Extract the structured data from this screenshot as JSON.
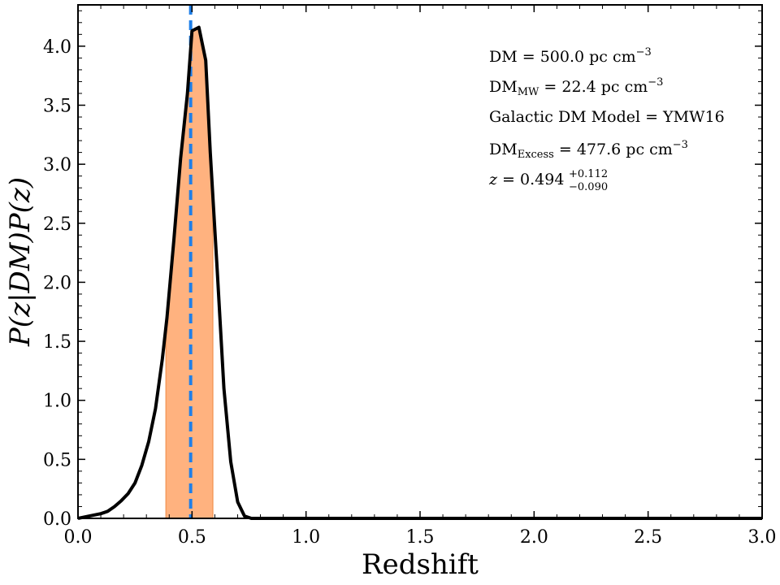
{
  "chart_data": {
    "type": "line",
    "xlabel": "Redshift",
    "ylabel": "P(z|DM)P(z)",
    "xlim": [
      0.0,
      3.0
    ],
    "ylim": [
      0.0,
      4.35
    ],
    "x_ticks": [
      0.0,
      0.5,
      1.0,
      1.5,
      2.0,
      2.5,
      3.0
    ],
    "x_tick_labels": [
      "0.0",
      "0.5",
      "1.0",
      "1.5",
      "2.0",
      "2.5",
      "3.0"
    ],
    "y_ticks": [
      0.0,
      0.5,
      1.0,
      1.5,
      2.0,
      2.5,
      3.0,
      3.5,
      4.0
    ],
    "y_tick_labels": [
      "0.0",
      "0.5",
      "1.0",
      "1.5",
      "2.0",
      "2.5",
      "3.0",
      "3.5",
      "4.0"
    ],
    "grid": false,
    "series": [
      {
        "color": "#000000",
        "x": [
          0.0,
          0.05,
          0.1,
          0.13,
          0.16,
          0.19,
          0.22,
          0.25,
          0.28,
          0.31,
          0.34,
          0.37,
          0.39,
          0.42,
          0.45,
          0.48,
          0.5,
          0.53,
          0.56,
          0.58,
          0.61,
          0.64,
          0.67,
          0.7,
          0.73,
          0.76,
          0.79,
          0.82,
          0.85,
          0.9,
          1.0,
          1.5,
          2.0,
          2.5,
          3.0
        ],
        "y": [
          0.0,
          0.02,
          0.04,
          0.06,
          0.1,
          0.15,
          0.21,
          0.3,
          0.45,
          0.65,
          0.93,
          1.35,
          1.7,
          2.35,
          3.05,
          3.6,
          4.13,
          4.16,
          3.88,
          3.1,
          2.12,
          1.1,
          0.48,
          0.14,
          0.02,
          0.0,
          0.0,
          0.0,
          0.0,
          0.0,
          0.0,
          0.0,
          0.0,
          0.0,
          0.0
        ]
      }
    ],
    "shaded_interval": {
      "x_min": 0.386,
      "x_max": 0.591,
      "color": "#ffb27f"
    },
    "vertical_line": {
      "x": 0.494,
      "color": "#1f7fe8",
      "style": "dashed"
    },
    "annotations": {
      "dm": {
        "lhs": "DM",
        "value": " = 500.0 pc cm",
        "sup": "−3"
      },
      "dm_mw": {
        "lhs": "DM",
        "sub": "MW",
        "value": " = 22.4 pc cm",
        "sup": "−3"
      },
      "model": {
        "text": "Galactic DM Model = YMW16"
      },
      "dm_excess": {
        "lhs": "DM",
        "sub": "Excess",
        "value": " = 477.6 pc cm",
        "sup": "−3"
      },
      "z": {
        "lhs": "z",
        "value": " = 0.494",
        "sup": "+0.112",
        "sub": "−0.090"
      }
    }
  }
}
